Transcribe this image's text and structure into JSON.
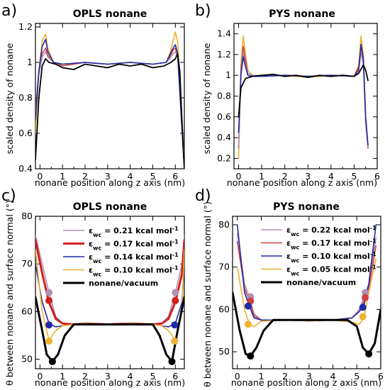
{
  "chart_data": [
    {
      "panel": "a)",
      "type": "line",
      "title": "OPLS nonane",
      "xlabel": "nonane position along z axis (nm)",
      "ylabel": "scaled density of nonane",
      "xlim": [
        -0.2,
        6.4
      ],
      "ylim": [
        0.4,
        1.22
      ],
      "xticks": [
        "0",
        "1",
        "2",
        "3",
        "4",
        "5",
        "6"
      ],
      "yticks": [
        "0.4",
        "0.6",
        "0.8",
        "1",
        "1.2"
      ],
      "ytick_values": [
        0.4,
        0.6,
        0.8,
        1.0,
        1.2
      ],
      "series": [
        {
          "color": "#f0b030",
          "width": 1.6,
          "x": [
            -0.2,
            -0.05,
            0.1,
            0.25,
            0.35,
            0.6,
            1,
            2,
            3,
            4,
            5,
            5.6,
            5.75,
            5.9,
            6.0,
            6.1,
            6.25,
            6.4
          ],
          "y": [
            0.6,
            0.95,
            1.12,
            1.16,
            1.08,
            1.0,
            0.99,
            1.0,
            0.99,
            1.0,
            0.99,
            1.0,
            1.05,
            1.12,
            1.17,
            1.12,
            0.8,
            0.4
          ]
        },
        {
          "color": "#d04040",
          "width": 1.6,
          "x": [
            -0.2,
            -0.05,
            0.1,
            0.25,
            0.35,
            0.6,
            1,
            2,
            3,
            4,
            5,
            5.6,
            5.75,
            5.9,
            6.0,
            6.1,
            6.25,
            6.4
          ],
          "y": [
            0.72,
            0.95,
            1.05,
            1.08,
            1.04,
            1.0,
            0.98,
            1.0,
            0.99,
            1.0,
            0.99,
            1.0,
            1.03,
            1.07,
            1.08,
            1.04,
            0.75,
            0.42
          ]
        },
        {
          "color": "#b090b0",
          "width": 1.6,
          "x": [
            -0.2,
            -0.05,
            0.1,
            0.25,
            0.35,
            0.6,
            1,
            2,
            3,
            4,
            5,
            5.6,
            5.75,
            5.9,
            6.0,
            6.1,
            6.25,
            6.4
          ],
          "y": [
            0.7,
            0.93,
            1.03,
            1.06,
            1.03,
            1.0,
            0.99,
            1.0,
            0.99,
            1.0,
            0.99,
            1.0,
            1.02,
            1.05,
            1.06,
            1.03,
            0.78,
            0.45
          ]
        },
        {
          "color": "#1e2aa8",
          "width": 1.6,
          "x": [
            -0.2,
            -0.05,
            0.1,
            0.25,
            0.35,
            0.6,
            1,
            2,
            3,
            4,
            5,
            5.6,
            5.75,
            5.9,
            6.0,
            6.1,
            6.25,
            6.4
          ],
          "y": [
            0.68,
            0.95,
            1.09,
            1.13,
            1.06,
            1.0,
            0.99,
            1.0,
            0.99,
            1.0,
            0.99,
            1.0,
            1.04,
            1.08,
            1.1,
            1.05,
            0.72,
            0.4
          ]
        },
        {
          "color": "#000000",
          "width": 1.8,
          "x": [
            -0.2,
            -0.05,
            0.1,
            0.25,
            0.4,
            0.7,
            1,
            1.5,
            2,
            2.5,
            3,
            3.5,
            4,
            4.5,
            5,
            5.5,
            5.8,
            6.0,
            6.1,
            6.2,
            6.3,
            6.4
          ],
          "y": [
            0.45,
            0.8,
            0.98,
            1.02,
            1.0,
            0.99,
            0.97,
            0.96,
            0.99,
            0.98,
            0.97,
            0.99,
            0.98,
            0.99,
            0.97,
            0.98,
            1.0,
            1.02,
            1.05,
            0.95,
            0.65,
            0.4
          ]
        }
      ]
    },
    {
      "panel": "b)",
      "type": "line",
      "title": "PYS nonane",
      "xlabel": "nonane position along z axis (nm)",
      "ylabel": "scaled density of nonane",
      "xlim": [
        -0.2,
        6.0
      ],
      "ylim": [
        0.1,
        1.5
      ],
      "xticks": [
        "0",
        "1",
        "2",
        "3",
        "4",
        "5",
        "6"
      ],
      "yticks": [
        "0.2",
        "0.4",
        "0.6",
        "0.8",
        "1",
        "1.2",
        "1.4"
      ],
      "ytick_values": [
        0.2,
        0.4,
        0.6,
        0.8,
        1.0,
        1.2,
        1.4
      ],
      "series": [
        {
          "color": "#f0b030",
          "width": 1.6,
          "x": [
            0,
            0.1,
            0.2,
            0.3,
            0.4,
            0.6,
            1,
            2,
            3,
            4,
            5,
            5.2,
            5.3,
            5.4,
            5.5,
            5.6
          ],
          "y": [
            0.2,
            1.1,
            1.38,
            1.2,
            1.05,
            1.0,
            0.99,
            1.0,
            0.98,
            1.0,
            0.99,
            1.1,
            1.38,
            1.2,
            0.6,
            0.3
          ]
        },
        {
          "color": "#d04040",
          "width": 1.6,
          "x": [
            0,
            0.1,
            0.2,
            0.3,
            0.4,
            0.6,
            1,
            2,
            3,
            4,
            5,
            5.2,
            5.3,
            5.4,
            5.5,
            5.6
          ],
          "y": [
            0.3,
            1.05,
            1.28,
            1.15,
            1.02,
            1.0,
            0.99,
            1.0,
            0.99,
            1.0,
            0.99,
            1.08,
            1.28,
            1.15,
            0.55,
            0.3
          ]
        },
        {
          "color": "#b090b0",
          "width": 1.6,
          "x": [
            0,
            0.1,
            0.2,
            0.3,
            0.4,
            0.6,
            1,
            2,
            3,
            4,
            5,
            5.2,
            5.3,
            5.4,
            5.5,
            5.6
          ],
          "y": [
            0.3,
            1.0,
            1.22,
            1.1,
            1.02,
            1.0,
            0.99,
            1.0,
            0.99,
            1.0,
            0.99,
            1.05,
            1.22,
            1.1,
            0.55,
            0.32
          ]
        },
        {
          "color": "#1e2aa8",
          "width": 1.6,
          "x": [
            0,
            0.1,
            0.2,
            0.3,
            0.4,
            0.6,
            1,
            2,
            3,
            4,
            5,
            5.2,
            5.3,
            5.4,
            5.5,
            5.6
          ],
          "y": [
            0.45,
            1.0,
            1.18,
            1.08,
            1.0,
            0.99,
            0.99,
            1.0,
            0.99,
            1.0,
            0.99,
            1.05,
            1.3,
            1.15,
            0.6,
            0.33
          ]
        },
        {
          "color": "#000000",
          "width": 1.8,
          "x": [
            0,
            0.1,
            0.3,
            0.6,
            1,
            1.5,
            2,
            2.5,
            3,
            3.5,
            4,
            4.5,
            5,
            5.2,
            5.4,
            5.5,
            5.6
          ],
          "y": [
            0.6,
            0.88,
            0.97,
            0.99,
            1.0,
            1.01,
            0.99,
            1.0,
            0.98,
            1.0,
            0.99,
            1.0,
            0.99,
            1.02,
            1.1,
            1.05,
            0.95
          ]
        }
      ]
    },
    {
      "panel": "c)",
      "type": "line",
      "title": "OPLS nonane",
      "xlabel": "nonane position along z axis (nm)",
      "ylabel": "θ  between nonane and surface normal (°)",
      "xlim": [
        -0.2,
        6.4
      ],
      "ylim": [
        48,
        80
      ],
      "xticks": [
        "0",
        "1",
        "2",
        "3",
        "4",
        "5",
        "6"
      ],
      "yticks": [
        "50",
        "60",
        "70",
        "80"
      ],
      "ytick_values": [
        50,
        60,
        70,
        80
      ],
      "series": [
        {
          "name": "εwc = 0.21 kcal mol⁻¹",
          "color": "#b090b0",
          "width": 1.6,
          "x": [
            -0.2,
            0.1,
            0.4,
            0.7,
            1.0,
            1.5,
            2,
            3,
            4,
            5,
            5.4,
            5.7,
            6.0,
            6.3,
            6.4
          ],
          "y": [
            76,
            70,
            64,
            59,
            57.5,
            57.3,
            57.5,
            57.3,
            57.5,
            57.3,
            57.5,
            59,
            64,
            70,
            76
          ]
        },
        {
          "name": "εwc = 0.17 kcal mol⁻¹",
          "color": "#d02020",
          "width": 3.0,
          "x": [
            -0.2,
            0.1,
            0.4,
            0.7,
            1.0,
            1.5,
            2,
            3,
            4,
            5,
            5.4,
            5.7,
            6.0,
            6.3,
            6.4
          ],
          "y": [
            75,
            68,
            62,
            58.5,
            57.5,
            57.3,
            57.5,
            57.3,
            57.5,
            57.3,
            57.5,
            58.5,
            62,
            68,
            75
          ]
        },
        {
          "name": "εwc = 0.14 kcal mol⁻¹",
          "color": "#1e2aa8",
          "width": 1.6,
          "x": [
            -0.2,
            0.1,
            0.4,
            0.7,
            1.0,
            1.5,
            2,
            3,
            4,
            5,
            5.4,
            5.7,
            6.0,
            6.3,
            6.4
          ],
          "y": [
            70,
            62,
            57.5,
            56.8,
            57.0,
            57.3,
            57.5,
            57.3,
            57.5,
            57.3,
            57.0,
            56.8,
            57.5,
            62,
            70
          ]
        },
        {
          "name": "εwc = 0.10 kcal mol⁻¹",
          "color": "#f0b030",
          "width": 1.6,
          "x": [
            -0.2,
            0.1,
            0.4,
            0.7,
            1.0,
            1.5,
            2,
            3,
            4,
            5,
            5.4,
            5.7,
            6.0,
            6.3,
            6.4
          ],
          "y": [
            73,
            60,
            54,
            56,
            57.0,
            57.3,
            57.5,
            57.3,
            57.5,
            57.3,
            57.0,
            56,
            54,
            60,
            73
          ]
        },
        {
          "name": "nonane/vacuum",
          "color": "#000000",
          "width": 3.0,
          "x": [
            -0.2,
            0.1,
            0.3,
            0.55,
            0.8,
            1.1,
            1.5,
            2,
            3,
            4,
            4.5,
            5,
            5.3,
            5.6,
            5.85,
            6.1,
            6.4
          ],
          "y": [
            63,
            56,
            51,
            49.5,
            51,
            55,
            57.3,
            57.3,
            57.3,
            57.3,
            57.3,
            57.3,
            55,
            51,
            49.5,
            56,
            63
          ]
        }
      ],
      "markers": [
        {
          "color": "#b090b0",
          "x": 0.4,
          "y": 64
        },
        {
          "color": "#d02020",
          "x": 0.4,
          "y": 62.3
        },
        {
          "color": "#1e2aa8",
          "x": 0.4,
          "y": 57.2
        },
        {
          "color": "#f0b030",
          "x": 0.4,
          "y": 53.8
        },
        {
          "color": "#000000",
          "x": 0.55,
          "y": 49.5
        },
        {
          "color": "#b090b0",
          "x": 6.0,
          "y": 64
        },
        {
          "color": "#d02020",
          "x": 6.0,
          "y": 62.3
        },
        {
          "color": "#1e2aa8",
          "x": 5.97,
          "y": 57.2
        },
        {
          "color": "#f0b030",
          "x": 5.97,
          "y": 53.8
        },
        {
          "color": "#000000",
          "x": 5.85,
          "y": 49.5
        }
      ]
    },
    {
      "panel": "d)",
      "type": "line",
      "title": "PYS nonane",
      "xlabel": "nonane position along z axis (nm)",
      "ylabel": "θ  between nonane and surface normal (°)",
      "xlim": [
        -0.2,
        6.0
      ],
      "ylim": [
        46,
        82
      ],
      "xticks": [
        "0",
        "1",
        "2",
        "3",
        "4",
        "5",
        "6"
      ],
      "yticks": [
        "50",
        "60",
        "70",
        "80"
      ],
      "ytick_values": [
        50,
        60,
        70,
        80
      ],
      "series": [
        {
          "name": "εwc = 0.22 kcal mol⁻¹",
          "color": "#b090b0",
          "width": 1.6,
          "x": [
            0,
            0.3,
            0.5,
            0.7,
            1,
            2,
            3,
            4,
            4.8,
            5.1,
            5.3,
            5.5,
            5.8
          ],
          "y": [
            78,
            66,
            63,
            59,
            57.5,
            57.5,
            57.3,
            57.5,
            58,
            60,
            63,
            66,
            77
          ]
        },
        {
          "name": "εwc = 0.17 kcal mol⁻¹",
          "color": "#d04040",
          "width": 1.6,
          "x": [
            0,
            0.3,
            0.5,
            0.7,
            1,
            2,
            3,
            4,
            4.8,
            5.1,
            5.3,
            5.5,
            5.8
          ],
          "y": [
            76,
            65,
            62,
            58.5,
            57.5,
            57.5,
            57.3,
            57.5,
            58,
            59.5,
            62,
            65,
            75
          ]
        },
        {
          "name": "εwc = 0.10 kcal mol⁻¹",
          "color": "#1e2aa8",
          "width": 1.6,
          "x": [
            0,
            0.3,
            0.5,
            0.7,
            1,
            2,
            3,
            4,
            4.8,
            5.1,
            5.3,
            5.5,
            5.8
          ],
          "y": [
            80,
            64,
            60.8,
            58,
            57.5,
            57.5,
            57.3,
            57.5,
            58,
            59.5,
            61,
            66,
            80
          ]
        },
        {
          "name": "εwc = 0.05 kcal mol⁻¹",
          "color": "#f0b030",
          "width": 1.6,
          "x": [
            0,
            0.3,
            0.5,
            0.7,
            1,
            2,
            3,
            4,
            4.8,
            5.1,
            5.3,
            5.5,
            5.8
          ],
          "y": [
            70,
            60,
            56.5,
            56,
            57.2,
            57.5,
            57.3,
            57.5,
            57,
            56.5,
            58,
            64,
            72
          ]
        },
        {
          "name": "nonane/vacuum",
          "color": "#000000",
          "width": 3.0,
          "x": [
            -0.2,
            0.1,
            0.35,
            0.55,
            0.8,
            1.1,
            1.5,
            2,
            3,
            4,
            4.6,
            5,
            5.25,
            5.5,
            5.75,
            6.0
          ],
          "y": [
            64,
            55,
            49.5,
            49,
            51,
            55,
            57.5,
            57.5,
            57.5,
            57.5,
            57.5,
            56,
            51,
            49.5,
            52,
            60
          ]
        }
      ],
      "markers": [
        {
          "color": "#b090b0",
          "x": 0.55,
          "y": 63
        },
        {
          "color": "#d04040",
          "x": 0.55,
          "y": 62
        },
        {
          "color": "#1e2aa8",
          "x": 0.45,
          "y": 60.8
        },
        {
          "color": "#f0b030",
          "x": 0.45,
          "y": 56.5
        },
        {
          "color": "#000000",
          "x": 0.55,
          "y": 49
        },
        {
          "color": "#b090b0",
          "x": 5.35,
          "y": 64
        },
        {
          "color": "#d04040",
          "x": 5.35,
          "y": 62.8
        },
        {
          "color": "#1e2aa8",
          "x": 5.25,
          "y": 60.5
        },
        {
          "color": "#f0b030",
          "x": 5.25,
          "y": 58.3
        },
        {
          "color": "#000000",
          "x": 5.5,
          "y": 49.5
        }
      ]
    }
  ],
  "legend_c": [
    {
      "prefix": "ε",
      "sub": "wc",
      "text": " = 0.21 kcal mol",
      "sup": "-1",
      "color": "#b090b0",
      "width": 1.6
    },
    {
      "prefix": "ε",
      "sub": "wc",
      "text": " = 0.17 kcal mol",
      "sup": "-1",
      "color": "#d02020",
      "width": 3.0
    },
    {
      "prefix": "ε",
      "sub": "wc",
      "text": " = 0.14 kcal mol",
      "sup": "-1",
      "color": "#1e2aa8",
      "width": 1.6
    },
    {
      "prefix": "ε",
      "sub": "wc",
      "text": " = 0.10 kcal mol",
      "sup": "-1",
      "color": "#f0b030",
      "width": 1.6
    },
    {
      "prefix": "",
      "sub": "",
      "text": "nonane/vacuum",
      "sup": "",
      "color": "#000000",
      "width": 3.0
    }
  ],
  "legend_d": [
    {
      "prefix": "ε",
      "sub": "wc",
      "text": " = 0.22 kcal mol",
      "sup": "-1",
      "color": "#b090b0",
      "width": 1.6
    },
    {
      "prefix": "ε",
      "sub": "wc",
      "text": " = 0.17 kcal mol",
      "sup": "-1",
      "color": "#d04040",
      "width": 1.6
    },
    {
      "prefix": "ε",
      "sub": "wc",
      "text": " = 0.10 kcal mol",
      "sup": "-1",
      "color": "#1e2aa8",
      "width": 1.6
    },
    {
      "prefix": "ε",
      "sub": "wc",
      "text": " = 0.05 kcal mol",
      "sup": "-1",
      "color": "#f0b030",
      "width": 1.6
    },
    {
      "prefix": "",
      "sub": "",
      "text": "nonane/vacuum",
      "sup": "",
      "color": "#000000",
      "width": 3.0
    }
  ]
}
